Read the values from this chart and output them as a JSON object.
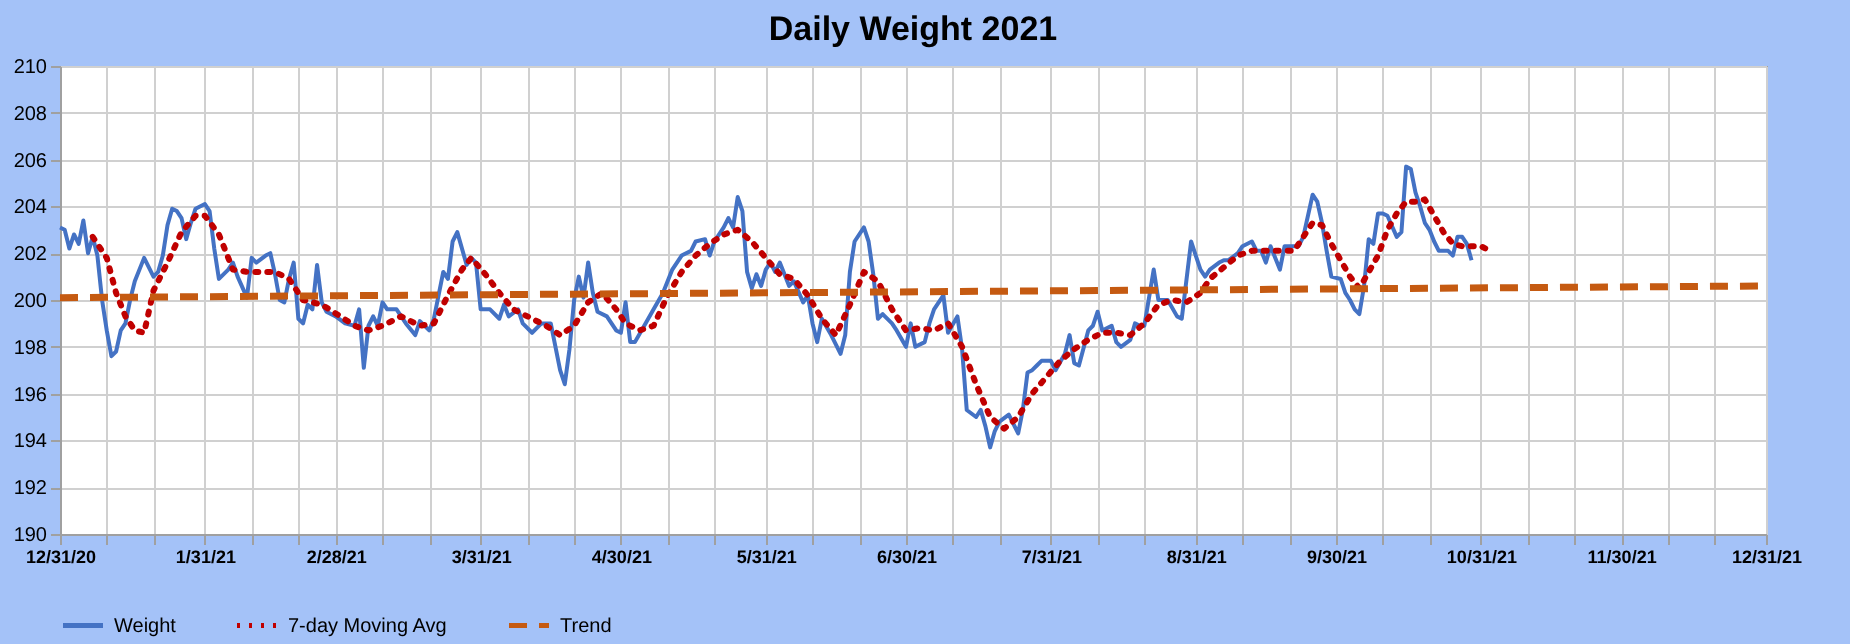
{
  "chart_data": {
    "type": "line",
    "title": "Daily Weight 2021",
    "grid": true,
    "legend": "bottom",
    "xlim": [
      "2020-12-31",
      "2021-12-31"
    ],
    "xticks": [
      {
        "value": "2020-12-31",
        "label": "12/31/20"
      },
      {
        "value": "2021-01-10",
        "label": null
      },
      {
        "value": "2021-01-20",
        "label": null
      },
      {
        "value": "2021-01-31",
        "label": "1/31/21"
      },
      {
        "value": "2021-02-10",
        "label": null
      },
      {
        "value": "2021-02-20",
        "label": null
      },
      {
        "value": "2021-02-28",
        "label": "2/28/21"
      },
      {
        "value": "2021-03-10",
        "label": null
      },
      {
        "value": "2021-03-20",
        "label": null
      },
      {
        "value": "2021-03-31",
        "label": "3/31/21"
      },
      {
        "value": "2021-04-10",
        "label": null
      },
      {
        "value": "2021-04-20",
        "label": null
      },
      {
        "value": "2021-04-30",
        "label": "4/30/21"
      },
      {
        "value": "2021-05-10",
        "label": null
      },
      {
        "value": "2021-05-20",
        "label": null
      },
      {
        "value": "2021-05-31",
        "label": "5/31/21"
      },
      {
        "value": "2021-06-10",
        "label": null
      },
      {
        "value": "2021-06-20",
        "label": null
      },
      {
        "value": "2021-06-30",
        "label": "6/30/21"
      },
      {
        "value": "2021-07-10",
        "label": null
      },
      {
        "value": "2021-07-20",
        "label": null
      },
      {
        "value": "2021-07-31",
        "label": "7/31/21"
      },
      {
        "value": "2021-08-10",
        "label": null
      },
      {
        "value": "2021-08-20",
        "label": null
      },
      {
        "value": "2021-08-31",
        "label": "8/31/21"
      },
      {
        "value": "2021-09-10",
        "label": null
      },
      {
        "value": "2021-09-20",
        "label": null
      },
      {
        "value": "2021-09-30",
        "label": "9/30/21"
      },
      {
        "value": "2021-10-10",
        "label": null
      },
      {
        "value": "2021-10-20",
        "label": null
      },
      {
        "value": "2021-10-31",
        "label": "10/31/21"
      },
      {
        "value": "2021-11-10",
        "label": null
      },
      {
        "value": "2021-11-20",
        "label": null
      },
      {
        "value": "2021-11-30",
        "label": "11/30/21"
      },
      {
        "value": "2021-12-10",
        "label": null
      },
      {
        "value": "2021-12-20",
        "label": null
      },
      {
        "value": "2021-12-31",
        "label": "12/31/21"
      }
    ],
    "ylim": [
      190,
      210
    ],
    "yticks": [
      190,
      192,
      194,
      196,
      198,
      200,
      202,
      204,
      206,
      208,
      210
    ],
    "series": [
      {
        "name": "Weight",
        "type": "line",
        "color": "#4472c4",
        "line_style": "solid",
        "x": [
          "2020-12-31",
          "2021-01-01",
          "2021-01-02",
          "2021-01-03",
          "2021-01-04",
          "2021-01-05",
          "2021-01-06",
          "2021-01-07",
          "2021-01-08",
          "2021-01-09",
          "2021-01-10",
          "2021-01-11",
          "2021-01-12",
          "2021-01-13",
          "2021-01-14",
          "2021-01-15",
          "2021-01-16",
          "2021-01-18",
          "2021-01-20",
          "2021-01-21",
          "2021-01-22",
          "2021-01-23",
          "2021-01-24",
          "2021-01-25",
          "2021-01-26",
          "2021-01-27",
          "2021-01-28",
          "2021-01-29",
          "2021-01-31",
          "2021-02-01",
          "2021-02-02",
          "2021-02-03",
          "2021-02-05",
          "2021-02-06",
          "2021-02-07",
          "2021-02-09",
          "2021-02-10",
          "2021-02-11",
          "2021-02-13",
          "2021-02-14",
          "2021-02-15",
          "2021-02-16",
          "2021-02-17",
          "2021-02-18",
          "2021-02-19",
          "2021-02-20",
          "2021-02-21",
          "2021-02-22",
          "2021-02-23",
          "2021-02-24",
          "2021-02-25",
          "2021-02-26",
          "2021-02-28",
          "2021-03-02",
          "2021-03-04",
          "2021-03-05",
          "2021-03-06",
          "2021-03-07",
          "2021-03-08",
          "2021-03-09",
          "2021-03-10",
          "2021-03-11",
          "2021-03-13",
          "2021-03-15",
          "2021-03-17",
          "2021-03-18",
          "2021-03-20",
          "2021-03-21",
          "2021-03-23",
          "2021-03-24",
          "2021-03-25",
          "2021-03-26",
          "2021-03-28",
          "2021-03-29",
          "2021-03-30",
          "2021-03-31",
          "2021-04-02",
          "2021-04-04",
          "2021-04-05",
          "2021-04-06",
          "2021-04-08",
          "2021-04-09",
          "2021-04-11",
          "2021-04-13",
          "2021-04-15",
          "2021-04-17",
          "2021-04-18",
          "2021-04-19",
          "2021-04-20",
          "2021-04-21",
          "2021-04-22",
          "2021-04-23",
          "2021-04-24",
          "2021-04-25",
          "2021-04-27",
          "2021-04-29",
          "2021-04-30",
          "2021-05-01",
          "2021-05-02",
          "2021-05-03",
          "2021-05-05",
          "2021-05-07",
          "2021-05-09",
          "2021-05-11",
          "2021-05-13",
          "2021-05-15",
          "2021-05-16",
          "2021-05-18",
          "2021-05-19",
          "2021-05-20",
          "2021-05-22",
          "2021-05-23",
          "2021-05-24",
          "2021-05-25",
          "2021-05-26",
          "2021-05-27",
          "2021-05-28",
          "2021-05-29",
          "2021-05-30",
          "2021-05-31",
          "2021-06-01",
          "2021-06-02",
          "2021-06-03",
          "2021-06-05",
          "2021-06-06",
          "2021-06-08",
          "2021-06-09",
          "2021-06-10",
          "2021-06-11",
          "2021-06-12",
          "2021-06-14",
          "2021-06-16",
          "2021-06-17",
          "2021-06-18",
          "2021-06-19",
          "2021-06-21",
          "2021-06-22",
          "2021-06-23",
          "2021-06-24",
          "2021-06-25",
          "2021-06-27",
          "2021-06-28",
          "2021-06-30",
          "2021-07-01",
          "2021-07-02",
          "2021-07-04",
          "2021-07-05",
          "2021-07-06",
          "2021-07-08",
          "2021-07-09",
          "2021-07-11",
          "2021-07-12",
          "2021-07-13",
          "2021-07-15",
          "2021-07-16",
          "2021-07-17",
          "2021-07-18",
          "2021-07-19",
          "2021-07-20",
          "2021-07-22",
          "2021-07-23",
          "2021-07-24",
          "2021-07-25",
          "2021-07-26",
          "2021-07-27",
          "2021-07-28",
          "2021-07-29",
          "2021-07-31",
          "2021-08-01",
          "2021-08-03",
          "2021-08-04",
          "2021-08-05",
          "2021-08-06",
          "2021-08-08",
          "2021-08-09",
          "2021-08-10",
          "2021-08-11",
          "2021-08-13",
          "2021-08-14",
          "2021-08-15",
          "2021-08-17",
          "2021-08-18",
          "2021-08-19",
          "2021-08-20",
          "2021-08-22",
          "2021-08-23",
          "2021-08-25",
          "2021-08-27",
          "2021-08-28",
          "2021-08-30",
          "2021-08-31",
          "2021-09-01",
          "2021-09-02",
          "2021-09-03",
          "2021-09-05",
          "2021-09-06",
          "2021-09-07",
          "2021-09-09",
          "2021-09-10",
          "2021-09-12",
          "2021-09-13",
          "2021-09-14",
          "2021-09-15",
          "2021-09-16",
          "2021-09-18",
          "2021-09-19",
          "2021-09-21",
          "2021-09-22",
          "2021-09-23",
          "2021-09-25",
          "2021-09-26",
          "2021-09-27",
          "2021-09-28",
          "2021-09-29",
          "2021-10-01",
          "2021-10-02",
          "2021-10-03",
          "2021-10-04",
          "2021-10-05",
          "2021-10-06",
          "2021-10-07",
          "2021-10-08",
          "2021-10-09",
          "2021-10-10",
          "2021-10-11",
          "2021-10-13",
          "2021-10-14",
          "2021-10-15",
          "2021-10-16",
          "2021-10-17",
          "2021-10-18",
          "2021-10-19",
          "2021-10-20",
          "2021-10-21",
          "2021-10-22",
          "2021-10-24",
          "2021-10-25",
          "2021-10-26",
          "2021-10-27",
          "2021-10-28",
          "2021-10-29"
        ],
        "values": [
          203.1,
          203.0,
          202.2,
          202.8,
          202.4,
          203.4,
          202.0,
          202.7,
          201.9,
          200.0,
          198.7,
          197.6,
          197.8,
          198.7,
          199.0,
          200.0,
          200.8,
          201.8,
          201.0,
          201.2,
          201.9,
          203.2,
          203.9,
          203.8,
          203.5,
          202.6,
          203.3,
          203.9,
          204.1,
          203.8,
          202.2,
          200.9,
          201.3,
          201.6,
          201.0,
          200.1,
          201.8,
          201.6,
          201.9,
          202.0,
          201.1,
          200.0,
          199.9,
          200.9,
          201.6,
          199.2,
          199.0,
          199.8,
          199.6,
          201.5,
          199.9,
          199.5,
          199.3,
          199.0,
          198.9,
          199.6,
          197.1,
          198.9,
          199.3,
          198.9,
          199.9,
          199.6,
          199.6,
          199.0,
          198.5,
          199.1,
          198.7,
          199.2,
          201.2,
          200.9,
          202.5,
          202.9,
          201.5,
          201.8,
          201.6,
          199.6,
          199.6,
          199.2,
          199.8,
          199.3,
          199.6,
          199.0,
          198.6,
          199.0,
          199.0,
          197.0,
          196.4,
          197.9,
          200.0,
          201.0,
          200.1,
          201.6,
          200.3,
          199.5,
          199.3,
          198.7,
          198.6,
          199.9,
          198.2,
          198.2,
          198.9,
          199.6,
          200.3,
          201.3,
          201.9,
          202.1,
          202.5,
          202.6,
          201.9,
          202.5,
          203.1,
          203.5,
          203.1,
          204.4,
          203.8,
          201.2,
          200.5,
          201.1,
          200.6,
          201.3,
          201.6,
          201.2,
          201.6,
          200.6,
          200.8,
          199.9,
          200.2,
          199.0,
          198.2,
          199.2,
          198.5,
          197.7,
          198.5,
          201.2,
          202.5,
          203.1,
          202.5,
          201.1,
          199.2,
          199.4,
          199.0,
          198.7,
          198.0,
          199.0,
          198.0,
          198.2,
          199.0,
          199.6,
          200.2,
          198.6,
          199.3,
          197.9,
          195.3,
          195.0,
          195.3,
          194.6,
          193.7,
          194.4,
          194.8,
          195.1,
          194.7,
          194.3,
          195.3,
          196.9,
          197.0,
          197.2,
          197.4,
          197.4,
          197.0,
          197.7,
          198.5,
          197.3,
          197.2,
          198.7,
          198.9,
          199.5,
          198.7,
          198.9,
          198.2,
          198.0,
          198.3,
          199.0,
          198.9,
          198.9,
          201.3,
          200.0,
          200.0,
          199.3,
          199.2,
          202.5,
          201.9,
          201.3,
          201.0,
          201.3,
          201.6,
          201.7,
          201.7,
          202.0,
          202.3,
          202.5,
          202.1,
          202.1,
          201.6,
          202.3,
          201.3,
          202.3,
          202.3,
          202.3,
          202.7,
          204.5,
          204.2,
          203.3,
          202.1,
          201.0,
          200.9,
          200.3,
          200.0,
          199.6,
          199.4,
          200.6,
          202.6,
          202.4,
          203.7,
          203.7,
          203.6,
          202.7,
          202.9,
          205.7,
          205.6,
          204.6,
          204.0,
          203.3,
          203.0,
          202.5,
          202.1,
          202.1,
          201.9,
          202.7,
          202.7,
          202.4,
          201.7
        ]
      },
      {
        "name": "7-day Moving Avg",
        "type": "line",
        "color": "#c00000",
        "line_style": "dotted",
        "x": [
          "2021-01-07",
          "2021-01-10",
          "2021-01-12",
          "2021-01-14",
          "2021-01-16",
          "2021-01-18",
          "2021-01-20",
          "2021-01-23",
          "2021-01-26",
          "2021-01-29",
          "2021-01-31",
          "2021-02-03",
          "2021-02-06",
          "2021-02-09",
          "2021-02-12",
          "2021-02-15",
          "2021-02-18",
          "2021-02-21",
          "2021-02-25",
          "2021-03-01",
          "2021-03-04",
          "2021-03-07",
          "2021-03-10",
          "2021-03-14",
          "2021-03-18",
          "2021-03-21",
          "2021-03-24",
          "2021-03-27",
          "2021-03-29",
          "2021-04-01",
          "2021-04-04",
          "2021-04-07",
          "2021-04-10",
          "2021-04-14",
          "2021-04-17",
          "2021-04-20",
          "2021-04-23",
          "2021-04-26",
          "2021-04-29",
          "2021-05-01",
          "2021-05-04",
          "2021-05-07",
          "2021-05-10",
          "2021-05-13",
          "2021-05-16",
          "2021-05-19",
          "2021-05-22",
          "2021-05-25",
          "2021-05-28",
          "2021-05-31",
          "2021-06-03",
          "2021-06-06",
          "2021-06-09",
          "2021-06-12",
          "2021-06-15",
          "2021-06-18",
          "2021-06-21",
          "2021-06-24",
          "2021-06-27",
          "2021-06-30",
          "2021-07-03",
          "2021-07-06",
          "2021-07-09",
          "2021-07-12",
          "2021-07-15",
          "2021-07-18",
          "2021-07-21",
          "2021-07-24",
          "2021-07-27",
          "2021-07-30",
          "2021-08-02",
          "2021-08-05",
          "2021-08-08",
          "2021-08-11",
          "2021-08-14",
          "2021-08-17",
          "2021-08-20",
          "2021-08-23",
          "2021-08-26",
          "2021-08-29",
          "2021-09-01",
          "2021-09-03",
          "2021-09-06",
          "2021-09-09",
          "2021-09-12",
          "2021-09-15",
          "2021-09-18",
          "2021-09-21",
          "2021-09-23",
          "2021-09-25",
          "2021-09-27",
          "2021-09-29",
          "2021-10-01",
          "2021-10-03",
          "2021-10-05",
          "2021-10-07",
          "2021-10-09",
          "2021-10-11",
          "2021-10-13",
          "2021-10-15",
          "2021-10-17",
          "2021-10-19",
          "2021-10-21",
          "2021-10-23",
          "2021-10-25",
          "2021-10-27",
          "2021-10-29",
          "2021-10-31",
          "2021-11-02"
        ],
        "values": [
          202.7,
          201.8,
          200.3,
          199.3,
          198.7,
          198.6,
          200.4,
          201.6,
          202.9,
          203.6,
          203.6,
          202.8,
          201.3,
          201.2,
          201.2,
          201.2,
          200.9,
          200.0,
          199.8,
          199.3,
          198.9,
          198.7,
          198.9,
          199.3,
          198.9,
          199.0,
          200.2,
          201.3,
          201.8,
          201.1,
          200.3,
          199.6,
          199.3,
          198.9,
          198.5,
          198.9,
          199.9,
          200.3,
          199.6,
          199.0,
          198.7,
          198.9,
          200.2,
          201.2,
          201.9,
          202.4,
          202.8,
          203.0,
          202.5,
          201.8,
          201.1,
          200.9,
          200.2,
          199.2,
          198.5,
          199.8,
          201.2,
          200.8,
          199.6,
          198.7,
          198.8,
          198.7,
          199.0,
          198.0,
          196.4,
          195.0,
          194.5,
          195.0,
          196.0,
          196.7,
          197.4,
          197.9,
          198.3,
          198.6,
          198.6,
          198.5,
          199.0,
          199.8,
          200.0,
          199.9,
          200.3,
          200.9,
          201.4,
          201.9,
          202.1,
          202.1,
          202.1,
          202.1,
          202.7,
          203.3,
          203.2,
          202.4,
          201.7,
          201.0,
          200.5,
          201.2,
          201.9,
          203.0,
          203.7,
          204.2,
          204.2,
          204.3,
          203.6,
          202.9,
          202.4,
          202.3,
          202.3,
          202.3,
          202.1
        ]
      },
      {
        "name": "Trend",
        "type": "line",
        "color": "#c55a11",
        "line_style": "dashed",
        "x": [
          "2020-12-31",
          "2021-12-31"
        ],
        "values": [
          200.1,
          200.6
        ]
      }
    ]
  }
}
